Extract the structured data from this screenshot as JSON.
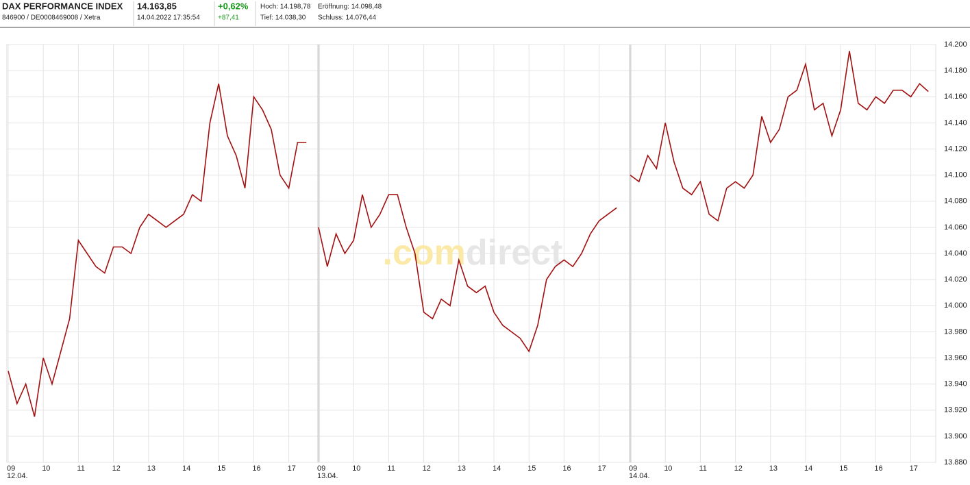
{
  "header": {
    "name": "DAX PERFORMANCE INDEX",
    "ids": "846900 / DE0008469008 / Xetra",
    "price": "14.163,85",
    "timestamp": "14.04.2022 17:35:54",
    "change_pct": "+0,62%",
    "change_abs": "+87,41",
    "high": "Hoch: 14.198,78",
    "open": "Eröffnung: 14.098,48",
    "low": "Tief: 14.038,30",
    "close": "Schluss: 14.076,44"
  },
  "watermark": {
    "part1": ".com",
    "part2": "direct"
  },
  "chart_data": {
    "type": "line",
    "color": "#a01010",
    "grid": true,
    "hours": [
      "09",
      "10",
      "11",
      "12",
      "13",
      "14",
      "15",
      "16",
      "17"
    ],
    "days": [
      {
        "label": "12.04.",
        "values": [
          13950,
          13925,
          13940,
          13915,
          13960,
          13940,
          13965,
          13990,
          14050,
          14040,
          14030,
          14025,
          14045,
          14045,
          14040,
          14060,
          14070,
          14065,
          14060,
          14065,
          14070,
          14085,
          14080,
          14140,
          14170,
          14130,
          14115,
          14090,
          14160,
          14150,
          14135,
          14100,
          14090,
          14125,
          14125
        ]
      },
      {
        "label": "13.04.",
        "values": [
          14060,
          14030,
          14055,
          14040,
          14050,
          14085,
          14060,
          14070,
          14085,
          14085,
          14060,
          14040,
          13995,
          13990,
          14005,
          14000,
          14035,
          14015,
          14010,
          14015,
          13995,
          13985,
          13980,
          13975,
          13965,
          13985,
          14020,
          14030,
          14035,
          14030,
          14040,
          14055,
          14065,
          14070,
          14075
        ]
      },
      {
        "label": "14.04.",
        "values": [
          14100,
          14095,
          14115,
          14105,
          14140,
          14110,
          14090,
          14085,
          14095,
          14070,
          14065,
          14090,
          14095,
          14090,
          14100,
          14145,
          14125,
          14135,
          14160,
          14165,
          14185,
          14150,
          14155,
          14130,
          14150,
          14195,
          14155,
          14150,
          14160,
          14155,
          14165,
          14165,
          14160,
          14170,
          14164
        ]
      }
    ],
    "ylim": [
      13880,
      14200
    ],
    "yticks": [
      {
        "value": 13880,
        "label": "13.880"
      },
      {
        "value": 13900,
        "label": "13.900"
      },
      {
        "value": 13920,
        "label": "13.920"
      },
      {
        "value": 13940,
        "label": "13.940"
      },
      {
        "value": 13960,
        "label": "13.960"
      },
      {
        "value": 13980,
        "label": "13.980"
      },
      {
        "value": 14000,
        "label": "14.000"
      },
      {
        "value": 14020,
        "label": "14.020"
      },
      {
        "value": 14040,
        "label": "14.040"
      },
      {
        "value": 14060,
        "label": "14.060"
      },
      {
        "value": 14080,
        "label": "14.080"
      },
      {
        "value": 14100,
        "label": "14.100"
      },
      {
        "value": 14120,
        "label": "14.120"
      },
      {
        "value": 14140,
        "label": "14.140"
      },
      {
        "value": 14160,
        "label": "14.160"
      },
      {
        "value": 14180,
        "label": "14.180"
      },
      {
        "value": 14200,
        "label": "14.200"
      }
    ]
  }
}
